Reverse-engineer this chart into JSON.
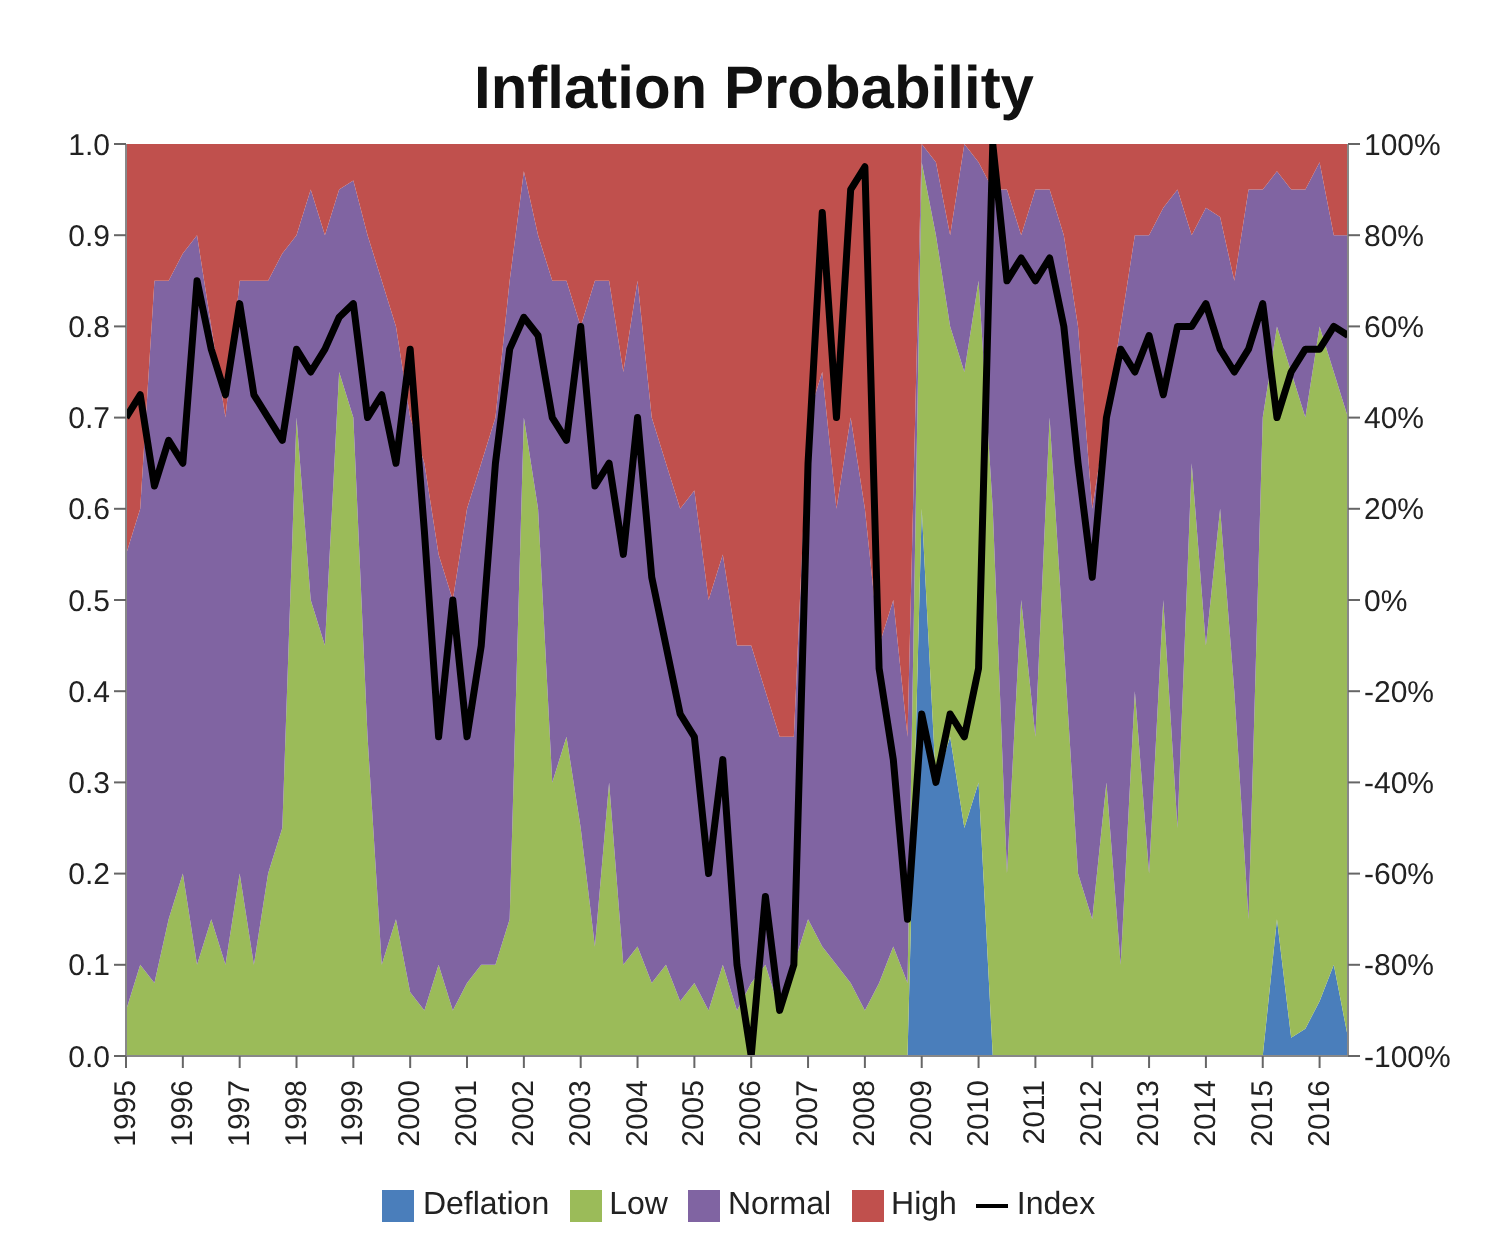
{
  "chart_data": {
    "type": "area",
    "title": "Inflation Probability",
    "stacked": true,
    "legend": "bottom",
    "x": [
      1995,
      1995.25,
      1995.5,
      1995.75,
      1996,
      1996.25,
      1996.5,
      1996.75,
      1997,
      1997.25,
      1997.5,
      1997.75,
      1998,
      1998.25,
      1998.5,
      1998.75,
      1999,
      1999.25,
      1999.5,
      1999.75,
      2000,
      2000.25,
      2000.5,
      2000.75,
      2001,
      2001.25,
      2001.5,
      2001.75,
      2002,
      2002.25,
      2002.5,
      2002.75,
      2003,
      2003.25,
      2003.5,
      2003.75,
      2004,
      2004.25,
      2004.5,
      2004.75,
      2005,
      2005.25,
      2005.5,
      2005.75,
      2006,
      2006.25,
      2006.5,
      2006.75,
      2007,
      2007.25,
      2007.5,
      2007.75,
      2008,
      2008.25,
      2008.5,
      2008.75,
      2009,
      2009.25,
      2009.5,
      2009.75,
      2010,
      2010.25,
      2010.5,
      2010.75,
      2011,
      2011.25,
      2011.5,
      2011.75,
      2012,
      2012.25,
      2012.5,
      2012.75,
      2013,
      2013.25,
      2013.5,
      2013.75,
      2014,
      2014.25,
      2014.5,
      2014.75,
      2015,
      2015.25,
      2015.5,
      2015.75,
      2016,
      2016.25,
      2016.5
    ],
    "xlim": [
      1995,
      2016.5
    ],
    "xticks": [
      1995,
      1996,
      1997,
      1998,
      1999,
      2000,
      2001,
      2002,
      2003,
      2004,
      2005,
      2006,
      2007,
      2008,
      2009,
      2010,
      2011,
      2012,
      2013,
      2014,
      2015,
      2016
    ],
    "ylim": [
      0,
      1
    ],
    "yticks": [
      {
        "value": 0,
        "label": "0.0"
      },
      0.1,
      0.2,
      0.3,
      0.4,
      0.5,
      0.6,
      0.7,
      0.8,
      0.9,
      {
        "value": 1,
        "label": "1.0"
      }
    ],
    "y2lim": [
      -100,
      100
    ],
    "y2ticks": [
      {
        "value": -100,
        "label": "-100%"
      },
      {
        "value": -80,
        "label": "-80%"
      },
      {
        "value": -60,
        "label": "-60%"
      },
      {
        "value": -40,
        "label": "-40%"
      },
      {
        "value": -20,
        "label": "-20%"
      },
      {
        "value": 0,
        "label": "0%"
      },
      {
        "value": 20,
        "label": "20%"
      },
      {
        "value": 40,
        "label": "40%"
      },
      {
        "value": 60,
        "label": "60%"
      },
      {
        "value": 80,
        "label": "80%"
      },
      {
        "value": 100,
        "label": "100%"
      }
    ],
    "series": [
      {
        "name": "Deflation",
        "color": "#4a7ebb",
        "values": [
          0,
          0,
          0,
          0,
          0,
          0,
          0,
          0,
          0,
          0,
          0,
          0,
          0,
          0,
          0,
          0,
          0,
          0,
          0,
          0,
          0,
          0,
          0,
          0,
          0,
          0,
          0,
          0,
          0,
          0,
          0,
          0,
          0,
          0,
          0,
          0,
          0,
          0,
          0,
          0,
          0,
          0,
          0,
          0,
          0,
          0,
          0,
          0,
          0,
          0,
          0,
          0,
          0,
          0,
          0,
          0,
          0.6,
          0.3,
          0.35,
          0.25,
          0.3,
          0,
          0,
          0,
          0,
          0,
          0,
          0,
          0,
          0,
          0,
          0,
          0,
          0,
          0,
          0,
          0,
          0,
          0,
          0,
          0,
          0.15,
          0.02,
          0.03,
          0.06,
          0.1,
          0.02
        ]
      },
      {
        "name": "Low",
        "color": "#9bbb59",
        "values": [
          0.05,
          0.1,
          0.08,
          0.15,
          0.2,
          0.1,
          0.15,
          0.1,
          0.2,
          0.1,
          0.2,
          0.25,
          0.7,
          0.5,
          0.45,
          0.75,
          0.7,
          0.35,
          0.1,
          0.15,
          0.07,
          0.05,
          0.1,
          0.05,
          0.08,
          0.1,
          0.1,
          0.15,
          0.7,
          0.6,
          0.3,
          0.35,
          0.25,
          0.12,
          0.3,
          0.1,
          0.12,
          0.08,
          0.1,
          0.06,
          0.08,
          0.05,
          0.1,
          0.05,
          0.08,
          0.1,
          0.05,
          0.1,
          0.15,
          0.12,
          0.1,
          0.08,
          0.05,
          0.08,
          0.12,
          0.08,
          0.38,
          0.6,
          0.45,
          0.5,
          0.55,
          0.6,
          0.2,
          0.5,
          0.35,
          0.7,
          0.45,
          0.2,
          0.15,
          0.3,
          0.1,
          0.4,
          0.2,
          0.5,
          0.25,
          0.65,
          0.45,
          0.6,
          0.4,
          0.15,
          0.7,
          0.65,
          0.73,
          0.67,
          0.74,
          0.65,
          0.68
        ]
      },
      {
        "name": "Normal",
        "color": "#8064a2",
        "values": [
          0.5,
          0.5,
          0.77,
          0.7,
          0.68,
          0.8,
          0.65,
          0.6,
          0.65,
          0.75,
          0.65,
          0.63,
          0.2,
          0.45,
          0.45,
          0.2,
          0.26,
          0.55,
          0.75,
          0.65,
          0.63,
          0.6,
          0.45,
          0.45,
          0.52,
          0.55,
          0.6,
          0.7,
          0.27,
          0.3,
          0.55,
          0.5,
          0.55,
          0.73,
          0.55,
          0.65,
          0.73,
          0.62,
          0.55,
          0.54,
          0.54,
          0.45,
          0.45,
          0.4,
          0.37,
          0.3,
          0.3,
          0.25,
          0.55,
          0.63,
          0.5,
          0.62,
          0.55,
          0.37,
          0.38,
          0.27,
          0.02,
          0.08,
          0.1,
          0.25,
          0.13,
          0.35,
          0.75,
          0.4,
          0.6,
          0.25,
          0.45,
          0.6,
          0.45,
          0.4,
          0.7,
          0.5,
          0.7,
          0.43,
          0.7,
          0.25,
          0.48,
          0.32,
          0.45,
          0.8,
          0.25,
          0.17,
          0.2,
          0.25,
          0.18,
          0.15,
          0.2
        ]
      },
      {
        "name": "High",
        "color": "#c0504d",
        "values": [
          0.45,
          0.4,
          0.15,
          0.15,
          0.12,
          0.1,
          0.2,
          0.3,
          0.15,
          0.15,
          0.15,
          0.12,
          0.1,
          0.05,
          0.1,
          0.05,
          0.04,
          0.1,
          0.15,
          0.2,
          0.3,
          0.35,
          0.45,
          0.5,
          0.4,
          0.35,
          0.3,
          0.15,
          0.03,
          0.1,
          0.15,
          0.15,
          0.2,
          0.15,
          0.15,
          0.25,
          0.15,
          0.3,
          0.35,
          0.4,
          0.38,
          0.5,
          0.45,
          0.55,
          0.55,
          0.6,
          0.65,
          0.65,
          0.3,
          0.25,
          0.4,
          0.3,
          0.4,
          0.55,
          0.5,
          0.65,
          0,
          0.02,
          0.1,
          0,
          0.02,
          0.05,
          0.05,
          0.1,
          0.05,
          0.05,
          0.1,
          0.2,
          0.4,
          0.3,
          0.2,
          0.1,
          0.1,
          0.07,
          0.05,
          0.1,
          0.07,
          0.08,
          0.15,
          0.05,
          0.05,
          0.03,
          0.05,
          0.05,
          0.02,
          0.1,
          0.1
        ]
      },
      {
        "name": "Index",
        "type": "line",
        "axis": "y2",
        "color": "#000000",
        "marker": "none",
        "values": [
          40,
          45,
          25,
          35,
          30,
          70,
          55,
          45,
          65,
          45,
          40,
          35,
          55,
          50,
          55,
          62,
          65,
          40,
          45,
          30,
          55,
          15,
          -30,
          0,
          -30,
          -10,
          30,
          55,
          62,
          58,
          40,
          35,
          60,
          25,
          30,
          10,
          40,
          5,
          -10,
          -25,
          -30,
          -60,
          -35,
          -80,
          -100,
          -65,
          -90,
          -80,
          30,
          85,
          40,
          90,
          95,
          -15,
          -35,
          -70,
          -25,
          -40,
          -25,
          -30,
          -15,
          100,
          70,
          75,
          70,
          75,
          60,
          30,
          5,
          40,
          55,
          50,
          58,
          45,
          60,
          60,
          65,
          55,
          50,
          55,
          65,
          40,
          50,
          55,
          55,
          60,
          58
        ]
      }
    ]
  }
}
